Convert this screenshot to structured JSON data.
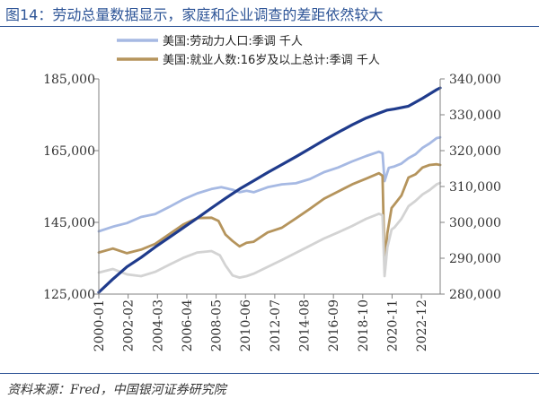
{
  "figure": {
    "title": "图14：劳动总量数据显示，家庭和企业调查的差距依然较大",
    "source": "资料来源：Fred，中国银河证券研究院"
  },
  "chart_data": {
    "type": "line",
    "title": "",
    "xlabel": "",
    "ylabel_left": "",
    "ylabel_right": "",
    "legend_placement": "top",
    "grid": false,
    "x_ticks": [
      "2000-01",
      "2002-02",
      "2004-03",
      "2006-04",
      "2008-05",
      "2010-06",
      "2012-07",
      "2014-08",
      "2016-09",
      "2018-10",
      "2020-11",
      "2022-12"
    ],
    "x_range": [
      2000.0,
      2024.25
    ],
    "y_left": {
      "range": [
        125000,
        185000
      ],
      "ticks": [
        "125,000",
        "145,000",
        "165,000",
        "185,000"
      ],
      "tick_values": [
        125000,
        145000,
        165000,
        185000
      ]
    },
    "y_right": {
      "range": [
        280000,
        340000
      ],
      "ticks": [
        "280,000",
        "290,000",
        "300,000",
        "310,000",
        "320,000",
        "330,000",
        "340,000"
      ],
      "tick_values": [
        280000,
        290000,
        300000,
        310000,
        320000,
        330000,
        340000
      ]
    },
    "series": [
      {
        "name": "美国:劳动力人口:季调 千人",
        "axis": "left",
        "color": "#a6b9e3",
        "in_legend": true,
        "points": [
          [
            2000.0,
            142500
          ],
          [
            2001.0,
            143800
          ],
          [
            2002.0,
            144800
          ],
          [
            2003.0,
            146500
          ],
          [
            2004.0,
            147300
          ],
          [
            2005.0,
            149300
          ],
          [
            2006.0,
            151400
          ],
          [
            2007.0,
            153100
          ],
          [
            2008.0,
            154300
          ],
          [
            2008.7,
            154800
          ],
          [
            2009.5,
            154100
          ],
          [
            2010.0,
            153400
          ],
          [
            2010.5,
            153800
          ],
          [
            2011.0,
            153400
          ],
          [
            2012.0,
            154800
          ],
          [
            2013.0,
            155600
          ],
          [
            2014.0,
            155900
          ],
          [
            2015.0,
            157100
          ],
          [
            2016.0,
            159000
          ],
          [
            2017.0,
            160300
          ],
          [
            2018.0,
            162000
          ],
          [
            2019.0,
            163500
          ],
          [
            2019.9,
            164700
          ],
          [
            2020.15,
            164300
          ],
          [
            2020.3,
            156500
          ],
          [
            2020.6,
            160200
          ],
          [
            2021.0,
            160600
          ],
          [
            2021.5,
            161400
          ],
          [
            2022.0,
            162900
          ],
          [
            2022.5,
            164000
          ],
          [
            2023.0,
            165800
          ],
          [
            2023.5,
            167000
          ],
          [
            2024.0,
            168500
          ],
          [
            2024.25,
            168700
          ]
        ]
      },
      {
        "name": "美国:就业人数:16岁及以上总计:季调 千人",
        "axis": "left",
        "color": "#b5945c",
        "in_legend": true,
        "points": [
          [
            2000.0,
            136600
          ],
          [
            2001.0,
            137700
          ],
          [
            2002.0,
            136400
          ],
          [
            2003.0,
            137400
          ],
          [
            2004.0,
            139000
          ],
          [
            2005.0,
            141700
          ],
          [
            2006.0,
            144400
          ],
          [
            2007.0,
            146200
          ],
          [
            2008.0,
            146300
          ],
          [
            2008.5,
            145400
          ],
          [
            2009.0,
            141600
          ],
          [
            2009.5,
            139800
          ],
          [
            2010.0,
            138300
          ],
          [
            2010.5,
            139300
          ],
          [
            2011.0,
            139600
          ],
          [
            2012.0,
            142200
          ],
          [
            2013.0,
            143500
          ],
          [
            2014.0,
            146100
          ],
          [
            2015.0,
            148800
          ],
          [
            2016.0,
            151600
          ],
          [
            2017.0,
            153600
          ],
          [
            2018.0,
            155600
          ],
          [
            2019.0,
            157200
          ],
          [
            2019.9,
            158700
          ],
          [
            2020.15,
            158000
          ],
          [
            2020.3,
            133400
          ],
          [
            2020.5,
            142000
          ],
          [
            2020.8,
            149000
          ],
          [
            2021.0,
            150000
          ],
          [
            2021.5,
            152500
          ],
          [
            2022.0,
            157500
          ],
          [
            2022.5,
            158400
          ],
          [
            2023.0,
            160300
          ],
          [
            2023.5,
            161000
          ],
          [
            2024.0,
            161200
          ],
          [
            2024.25,
            161000
          ]
        ]
      },
      {
        "name": "",
        "axis": "right",
        "color": "#d3d3d3",
        "in_legend": false,
        "points": [
          [
            2000.0,
            286000
          ],
          [
            2001.0,
            287000
          ],
          [
            2002.0,
            285500
          ],
          [
            2003.0,
            285000
          ],
          [
            2004.0,
            286200
          ],
          [
            2005.0,
            288200
          ],
          [
            2006.0,
            290100
          ],
          [
            2007.0,
            291600
          ],
          [
            2008.0,
            292000
          ],
          [
            2008.6,
            290800
          ],
          [
            2009.0,
            288000
          ],
          [
            2009.5,
            285200
          ],
          [
            2010.0,
            284600
          ],
          [
            2010.5,
            285000
          ],
          [
            2011.0,
            285700
          ],
          [
            2012.0,
            287600
          ],
          [
            2013.0,
            289500
          ],
          [
            2014.0,
            291500
          ],
          [
            2015.0,
            293500
          ],
          [
            2016.0,
            295500
          ],
          [
            2017.0,
            297200
          ],
          [
            2018.0,
            299000
          ],
          [
            2019.0,
            301000
          ],
          [
            2019.9,
            302400
          ],
          [
            2020.15,
            302000
          ],
          [
            2020.3,
            285000
          ],
          [
            2020.5,
            293000
          ],
          [
            2020.8,
            298000
          ],
          [
            2021.0,
            298600
          ],
          [
            2021.5,
            301000
          ],
          [
            2022.0,
            304500
          ],
          [
            2022.5,
            306000
          ],
          [
            2023.0,
            307800
          ],
          [
            2023.5,
            309000
          ],
          [
            2024.0,
            310600
          ],
          [
            2024.25,
            311000
          ]
        ]
      },
      {
        "name": "",
        "axis": "right",
        "color": "#1f3b8c",
        "in_legend": false,
        "points": [
          [
            2000.0,
            280500
          ],
          [
            2001.0,
            284200
          ],
          [
            2002.0,
            287600
          ],
          [
            2003.0,
            290200
          ],
          [
            2004.0,
            293100
          ],
          [
            2005.0,
            295800
          ],
          [
            2006.0,
            298500
          ],
          [
            2007.0,
            301200
          ],
          [
            2008.0,
            304000
          ],
          [
            2009.0,
            306700
          ],
          [
            2010.0,
            309300
          ],
          [
            2011.0,
            311600
          ],
          [
            2012.0,
            313900
          ],
          [
            2013.0,
            316100
          ],
          [
            2014.0,
            318300
          ],
          [
            2015.0,
            320600
          ],
          [
            2016.0,
            322900
          ],
          [
            2017.0,
            325100
          ],
          [
            2018.0,
            327200
          ],
          [
            2019.0,
            329100
          ],
          [
            2020.0,
            330600
          ],
          [
            2020.5,
            331300
          ],
          [
            2021.0,
            331600
          ],
          [
            2022.0,
            332400
          ],
          [
            2023.0,
            334600
          ],
          [
            2024.0,
            337000
          ],
          [
            2024.25,
            337500
          ]
        ]
      }
    ]
  }
}
